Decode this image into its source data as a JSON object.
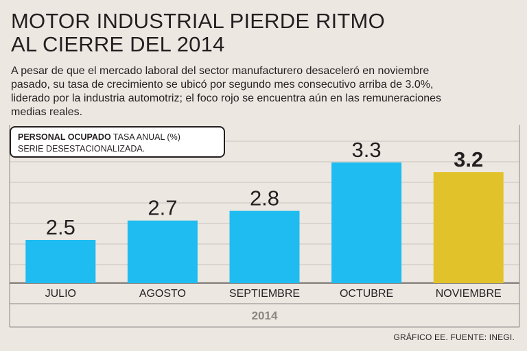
{
  "header": {
    "title_line1": "MOTOR INDUSTRIAL PIERDE RITMO",
    "title_line2": "AL CIERRE DEL 2014",
    "subtitle_line1": "A pesar de que el mercado laboral del sector manufacturero desaceleró en noviembre",
    "subtitle_line2": "pasado, su tasa de crecimiento se ubicó por segundo mes consecutivo  arriba de 3.0%,",
    "subtitle_line3": "liderado por la industria automotriz; el foco rojo se encuentra aún en las remuneraciones",
    "subtitle_line4": "medias reales."
  },
  "legend": {
    "bold_label": "PERSONAL OCUPADO",
    "label_rest": " TASA ANUAL (%)",
    "line2": "SERIE DESESTACIONALIZADA."
  },
  "chart_data": {
    "type": "bar",
    "title": "PERSONAL OCUPADO TASA ANUAL (%)",
    "subtitle": "SERIE DESESTACIONALIZADA.",
    "categories": [
      "JULIO",
      "AGOSTO",
      "SEPTIEMBRE",
      "OCTUBRE",
      "NOVIEMBRE"
    ],
    "values": [
      2.5,
      2.7,
      2.8,
      3.3,
      3.2
    ],
    "data_labels": [
      "2.5",
      "2.7",
      "2.8",
      "3.3",
      "3.2"
    ],
    "highlight_index": 4,
    "xlabel": "2014",
    "ylabel": "",
    "colors": {
      "bar": "#1ebcf0",
      "highlight": "#e2c22a",
      "grid": "#c9c3bd"
    }
  },
  "footer": {
    "source": "GRÁFICO EE. FUENTE: INEGI."
  }
}
